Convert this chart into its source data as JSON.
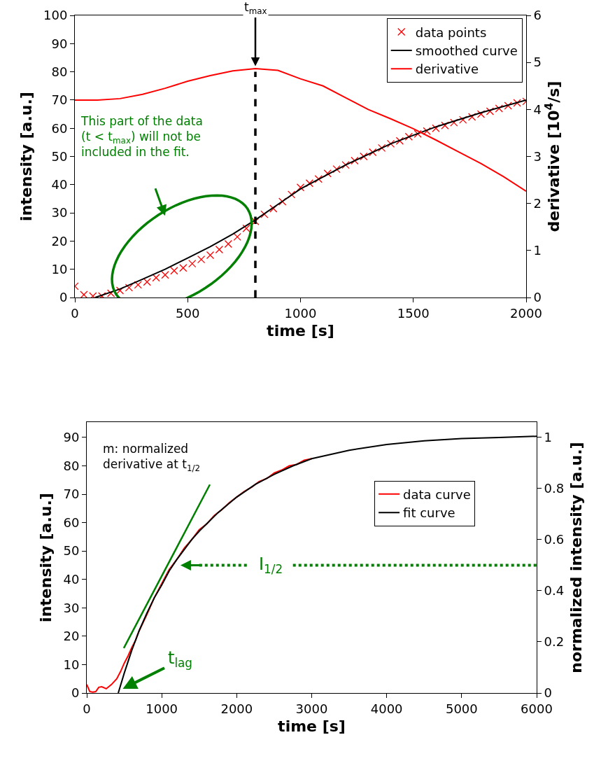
{
  "chart_data": [
    {
      "type": "scatter",
      "xlabel": "time [s]",
      "ylabel": "intensity [a.u.]",
      "y2label": "derivative [10$^{4}$/s]",
      "xlim": [
        0,
        2000
      ],
      "xticks": [
        0,
        500,
        1000,
        1500,
        2000
      ],
      "ylim": [
        0,
        100
      ],
      "yticks": [
        0,
        10,
        20,
        30,
        40,
        50,
        60,
        70,
        80,
        90,
        100
      ],
      "y2lim": [
        0,
        6
      ],
      "y2ticks": [
        0,
        1,
        2,
        3,
        4,
        5,
        6
      ],
      "legend": "top right",
      "series": [
        {
          "name": "data points",
          "marker": "cross",
          "color": "#ff0000",
          "x": [
            0,
            40,
            80,
            120,
            160,
            200,
            240,
            280,
            320,
            360,
            400,
            440,
            480,
            520,
            560,
            600,
            640,
            680,
            720,
            760,
            800,
            840,
            880,
            920,
            960,
            1000,
            1040,
            1080,
            1120,
            1160,
            1200,
            1240,
            1280,
            1320,
            1360,
            1400,
            1440,
            1480,
            1520,
            1560,
            1600,
            1640,
            1680,
            1720,
            1760,
            1800,
            1840,
            1880,
            1920,
            1960,
            2000
          ],
          "values": [
            4.0,
            1.0,
            0.5,
            0.5,
            1.5,
            2.5,
            3.5,
            4.5,
            5.5,
            7.0,
            8.0,
            9.5,
            10.5,
            12.0,
            13.5,
            15.0,
            17.0,
            19.0,
            21.5,
            24.5,
            27.0,
            29.5,
            31.5,
            34.0,
            36.5,
            39.0,
            40.5,
            42.0,
            44.0,
            45.5,
            47.0,
            48.5,
            50.0,
            51.5,
            53.0,
            54.5,
            55.5,
            57.0,
            58.0,
            59.0,
            60.0,
            61.0,
            62.0,
            63.0,
            64.0,
            65.0,
            66.0,
            67.0,
            68.0,
            69.0,
            69.5
          ]
        },
        {
          "name": "smoothed curve",
          "type": "line",
          "color": "#000000",
          "x": [
            90,
            200,
            300,
            400,
            500,
            600,
            700,
            800,
            900,
            1000,
            1200,
            1400,
            1600,
            1800,
            2000
          ],
          "values": [
            0,
            3,
            6.5,
            10,
            14,
            18,
            22.5,
            27.5,
            33,
            38.5,
            47,
            54.5,
            60.5,
            65.5,
            70
          ]
        },
        {
          "name": "derivative",
          "type": "line",
          "axis": "y2",
          "color": "#ff0000",
          "x": [
            0,
            100,
            200,
            300,
            400,
            500,
            600,
            700,
            800,
            900,
            1000,
            1100,
            1200,
            1300,
            1400,
            1500,
            1600,
            1700,
            1800,
            1900,
            2000
          ],
          "values": [
            4.2,
            4.2,
            4.23,
            4.32,
            4.45,
            4.6,
            4.72,
            4.82,
            4.87,
            4.83,
            4.65,
            4.5,
            4.25,
            4.0,
            3.8,
            3.59,
            3.35,
            3.1,
            2.85,
            2.57,
            2.26
          ]
        }
      ],
      "ref_lines": [
        {
          "axis": "x",
          "value": 800,
          "label": "t$_{max}$",
          "line_style": "dashed",
          "color": "#000000"
        }
      ],
      "annotations": [
        "This part of the data\n(t < t$_{max}$) will not be\nincluded in the fit."
      ]
    },
    {
      "type": "line",
      "xlabel": "time [s]",
      "ylabel": "intensity [a.u.]",
      "y2label": "normalized intensity [a.u.]",
      "xlim": [
        0,
        6000
      ],
      "xticks": [
        0,
        1000,
        2000,
        3000,
        4000,
        5000,
        6000
      ],
      "ylim": [
        0,
        95.4
      ],
      "yticks": [
        0,
        10,
        20,
        30,
        40,
        50,
        60,
        70,
        80,
        90
      ],
      "y2lim": [
        0,
        1.06
      ],
      "y2ticks": [
        0,
        0.2,
        0.4,
        0.6,
        0.8,
        1
      ],
      "legend": "right",
      "series": [
        {
          "name": "data curve",
          "color": "#ff0000",
          "x": [
            0,
            40,
            80,
            120,
            160,
            200,
            260,
            330,
            400,
            450,
            500,
            550,
            600,
            650,
            700,
            800,
            900,
            1000,
            1100,
            1200,
            1300,
            1400,
            1500,
            1600,
            1700,
            1800,
            1900,
            2000,
            2100,
            2200,
            2300,
            2400,
            2500,
            2600,
            2700,
            2800,
            2900,
            3000
          ],
          "values": [
            3,
            0.5,
            0.3,
            0.5,
            2,
            2.2,
            1.5,
            3,
            5,
            7.5,
            10.5,
            13,
            16,
            18.5,
            22,
            27.5,
            33.5,
            38.5,
            43.5,
            47,
            51,
            54,
            57.5,
            59.5,
            62.5,
            64.5,
            67,
            69,
            71,
            72.5,
            74.5,
            75.5,
            77.5,
            78.5,
            80,
            80.5,
            82,
            82.5
          ]
        },
        {
          "name": "fit curve",
          "color": "#000000",
          "x": [
            420,
            500,
            600,
            700,
            800,
            900,
            1000,
            1100,
            1200,
            1300,
            1400,
            1500,
            1750,
            2000,
            2250,
            2500,
            2750,
            3000,
            3500,
            4000,
            4500,
            5000,
            5500,
            6000
          ],
          "values": [
            0,
            7,
            15,
            22,
            28,
            33.5,
            38,
            43,
            47,
            50.5,
            54,
            57,
            63.5,
            69,
            73.5,
            77,
            80,
            82.5,
            85.5,
            87.5,
            88.8,
            89.6,
            90,
            90.4
          ]
        },
        {
          "color": "#008000",
          "x": [
            494,
            1642
          ],
          "values": [
            15.8,
            73.4
          ]
        }
      ],
      "annotations": [
        "m: normalized\nderivative at t$_{1/2}$",
        {
          "text": "I$_{1/2}$",
          "x": 2450,
          "y": 45
        },
        {
          "text": "t$_{lag}$",
          "x": 1250,
          "y": 12
        }
      ]
    }
  ]
}
